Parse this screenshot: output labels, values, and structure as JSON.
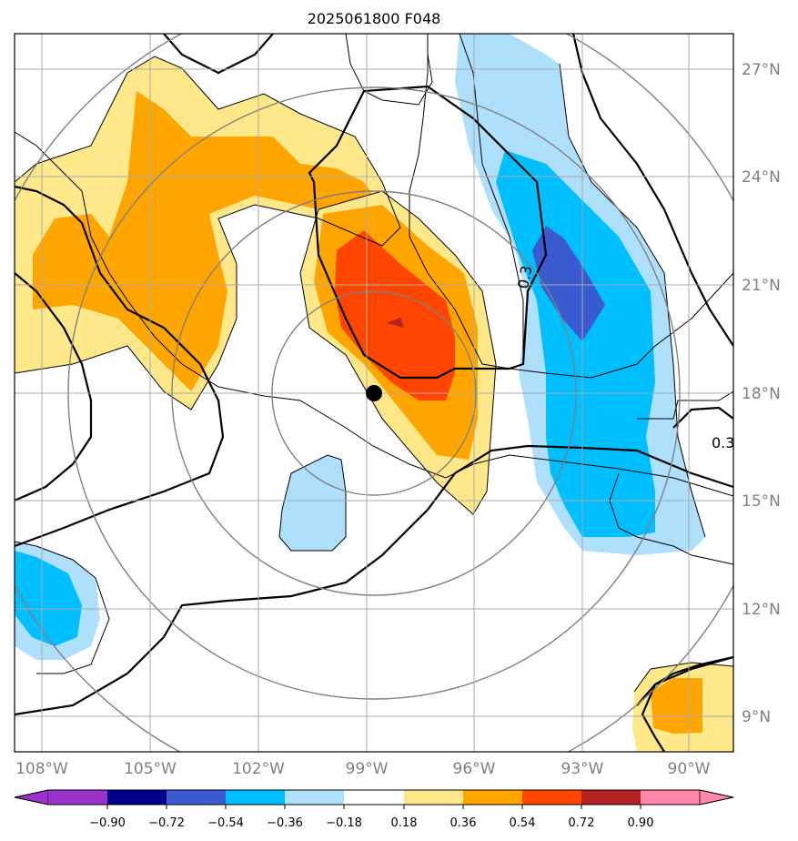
{
  "chart_data": {
    "type": "heatmap",
    "title": "2025061800 F048",
    "map": "Gulf of Mexico / Central America",
    "lon_ticks": [
      "108°W",
      "105°W",
      "102°W",
      "99°W",
      "96°W",
      "93°W",
      "90°W"
    ],
    "lon_values": [
      -108,
      -105,
      -102,
      -99,
      -96,
      -93,
      -90
    ],
    "lat_ticks": [
      "27°N",
      "24°N",
      "21°N",
      "18°N",
      "15°N",
      "12°N",
      "9°N"
    ],
    "lat_values": [
      27,
      24,
      21,
      18,
      15,
      12,
      9
    ],
    "xlim": [
      -108.75,
      -88.75
    ],
    "ylim": [
      8.0,
      28.0
    ],
    "grid": true,
    "center_marker": {
      "lon": -98.8,
      "lat": 18.0
    },
    "contour_labels": [
      "0.3",
      "0.3"
    ],
    "colorbar": {
      "levels": [
        -0.9,
        -0.72,
        -0.54,
        -0.36,
        -0.18,
        0.18,
        0.36,
        0.54,
        0.72,
        0.9
      ],
      "tick_labels": [
        "−0.90",
        "−0.72",
        "−0.54",
        "−0.36",
        "−0.18",
        "0.18",
        "0.36",
        "0.54",
        "0.72",
        "0.90"
      ],
      "colors": [
        "#9932cc",
        "#00008b",
        "#3a5bcf",
        "#00bfff",
        "#aedffb",
        "#ffffff",
        "#ffe88a",
        "#ffa500",
        "#ff4500",
        "#b22222",
        "#ff88aa"
      ],
      "extend": "both"
    },
    "fields": [
      {
        "region": "western-mexico",
        "value_range": [
          0.18,
          0.54
        ]
      },
      {
        "region": "veracruz-puebla",
        "value_range": [
          0.18,
          0.72
        ]
      },
      {
        "region": "western-gulf-to-guatemala",
        "value_range": [
          -0.72,
          -0.18
        ]
      },
      {
        "region": "pacific-south-of-mexico",
        "value_range": [
          -0.36,
          -0.18
        ]
      },
      {
        "region": "far-west-pacific",
        "value_range": [
          -0.54,
          -0.18
        ]
      },
      {
        "region": "southeast-corner",
        "value_range": [
          0.18,
          0.54
        ]
      }
    ]
  }
}
